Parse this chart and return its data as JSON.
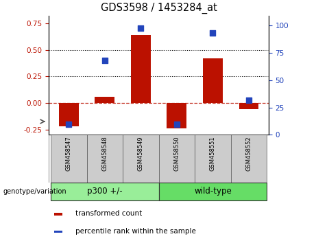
{
  "title": "GDS3598 / 1453284_at",
  "samples": [
    "GSM458547",
    "GSM458548",
    "GSM458549",
    "GSM458550",
    "GSM458551",
    "GSM458552"
  ],
  "transformed_counts": [
    -0.22,
    0.055,
    0.64,
    -0.24,
    0.42,
    -0.055
  ],
  "percentile_ranks": [
    10,
    68,
    98,
    10,
    93,
    32
  ],
  "bar_color": "#BB1100",
  "dot_color": "#2244BB",
  "groups": [
    {
      "label": "p300 +/-",
      "indices": [
        0,
        1,
        2
      ],
      "color": "#99EE99"
    },
    {
      "label": "wild-type",
      "indices": [
        3,
        4,
        5
      ],
      "color": "#66DD66"
    }
  ],
  "group_label": "genotype/variation",
  "ylim_left": [
    -0.3,
    0.82
  ],
  "ylim_right": [
    0,
    109
  ],
  "yticks_left": [
    -0.25,
    0.0,
    0.25,
    0.5,
    0.75
  ],
  "yticks_right": [
    0,
    25,
    50,
    75,
    100
  ],
  "hlines": [
    0.25,
    0.5
  ],
  "legend": [
    {
      "label": "transformed count",
      "color": "#BB1100"
    },
    {
      "label": "percentile rank within the sample",
      "color": "#2244BB"
    }
  ],
  "sample_box_color": "#CCCCCC",
  "bar_width": 0.55,
  "dot_size": 28
}
